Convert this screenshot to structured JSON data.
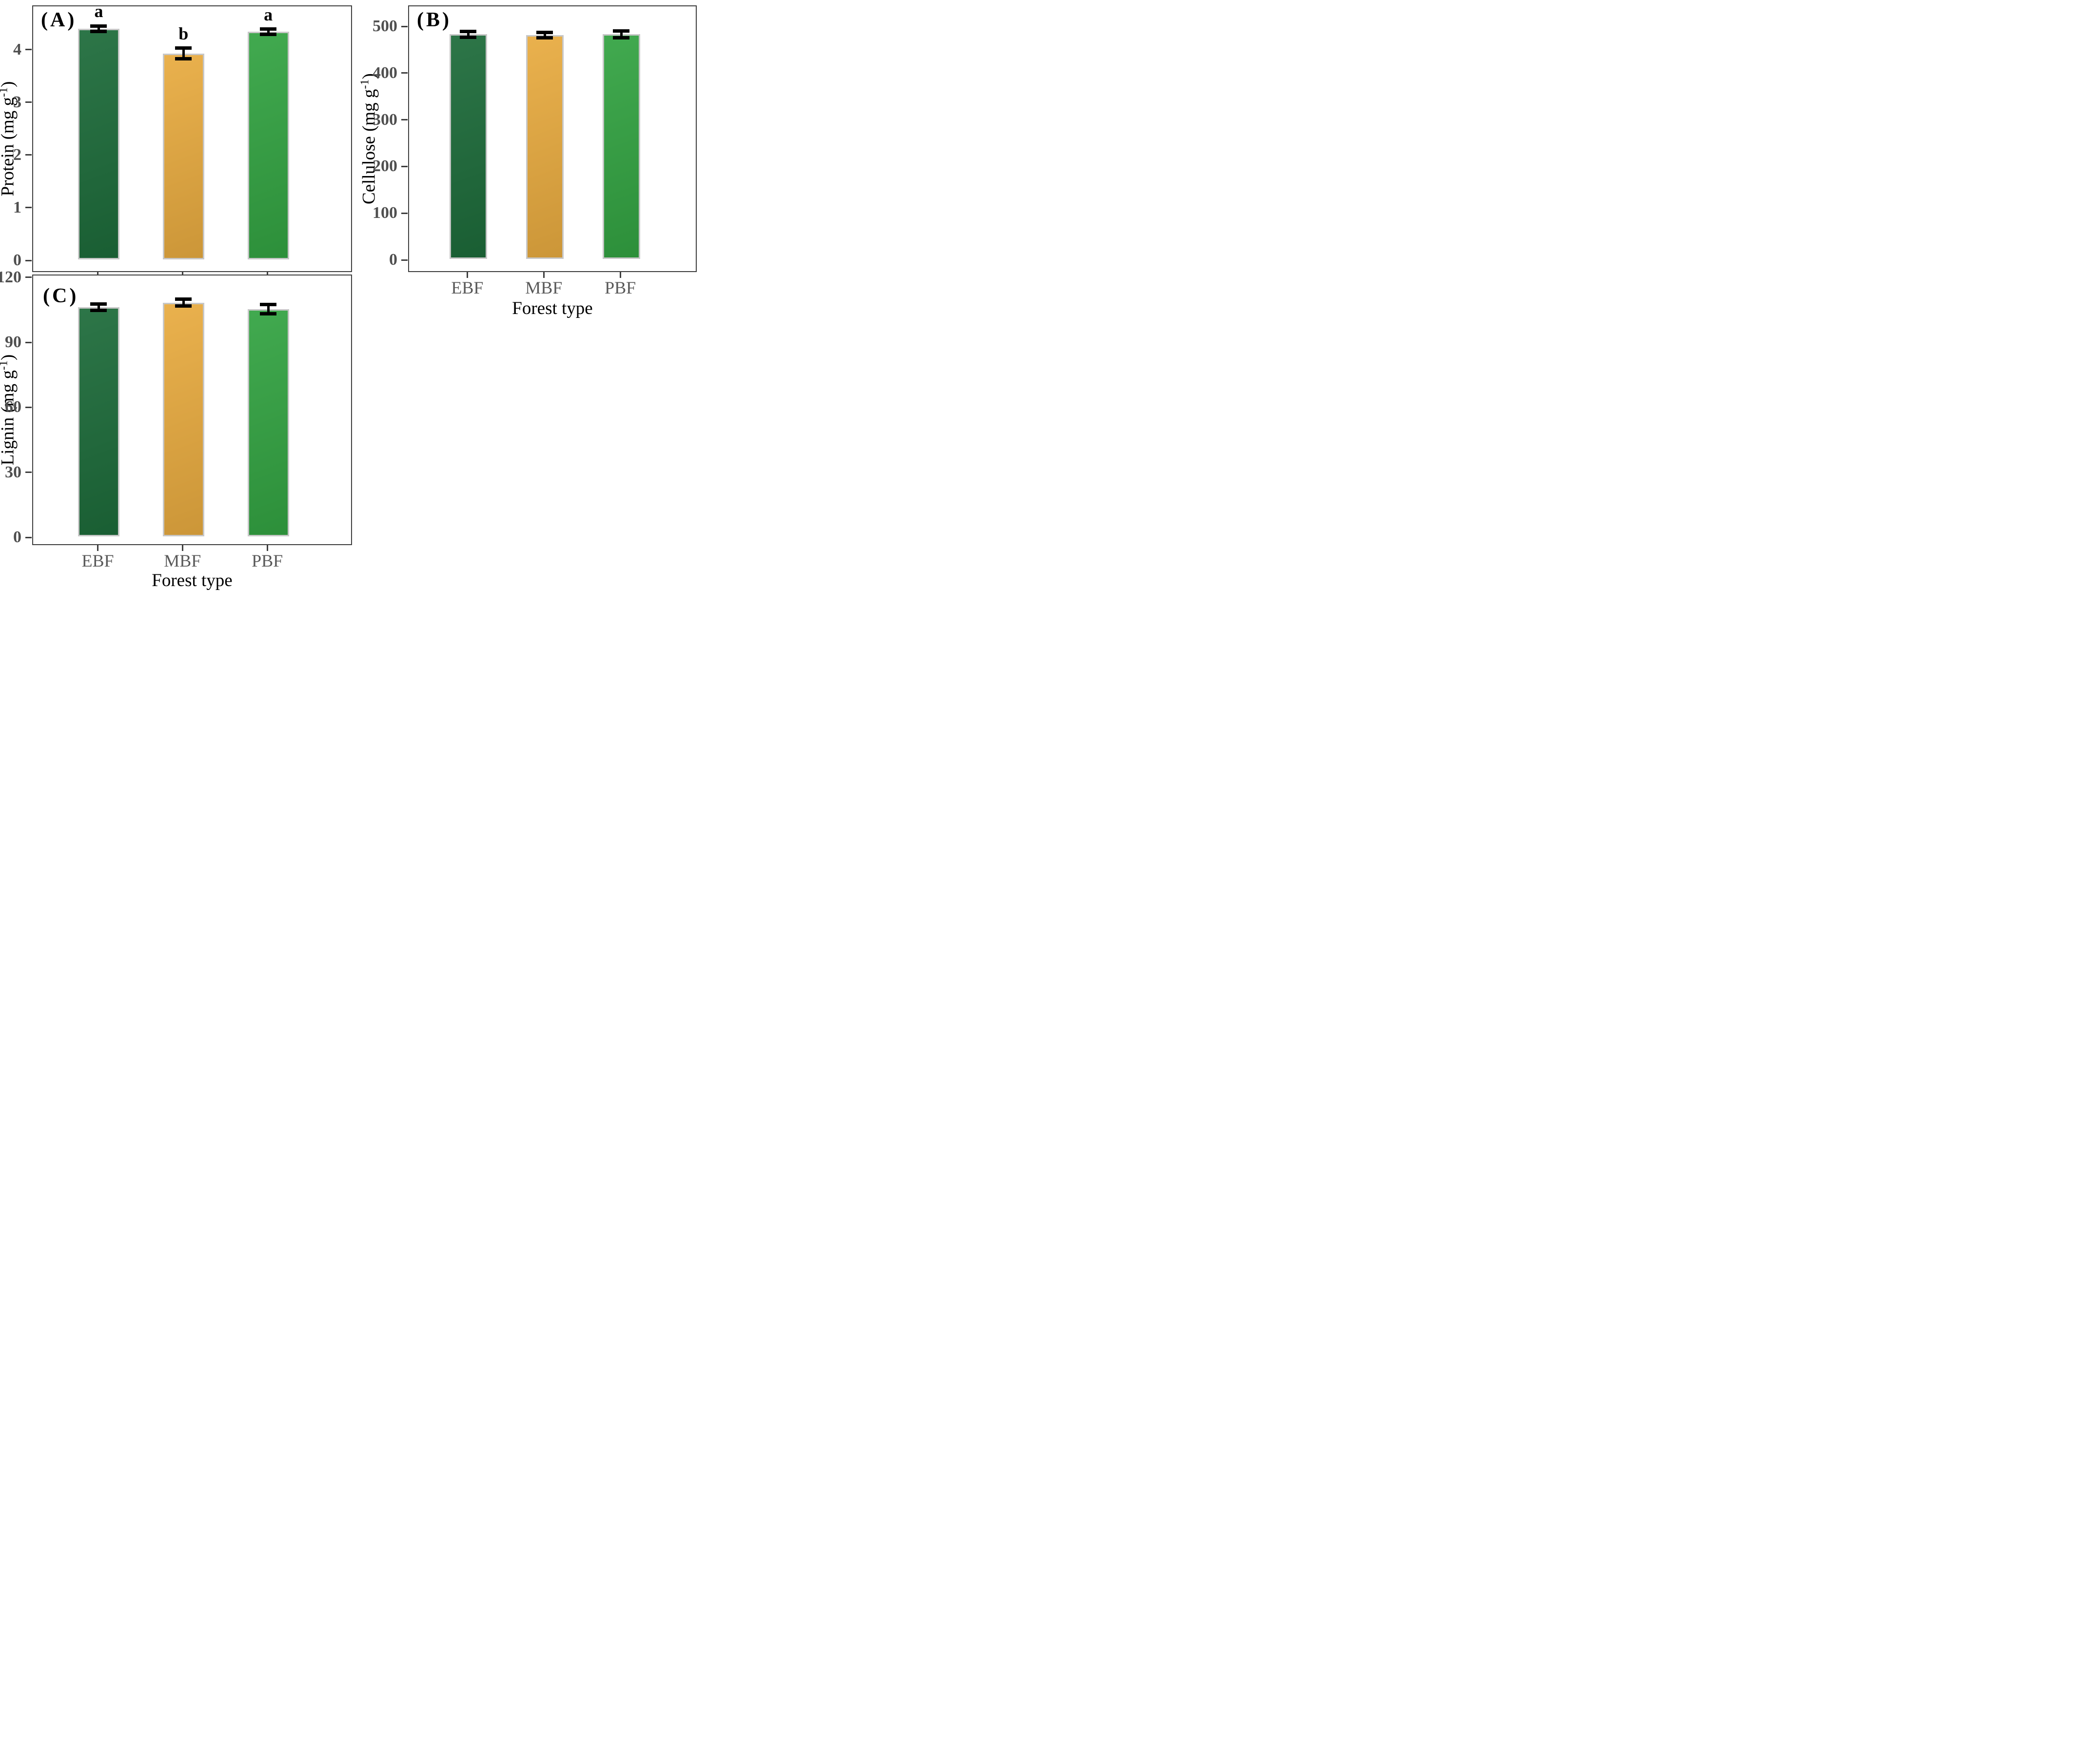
{
  "figure": {
    "description_visible_text_only": true,
    "forest_types": [
      "EBF",
      "MBF",
      "PBF"
    ],
    "x_axis_title": "Forest type"
  },
  "chart_data": [
    {
      "id": "A",
      "panel_label": "(A)",
      "type": "bar",
      "categories": [
        "EBF",
        "MBF",
        "PBF"
      ],
      "values": [
        4.38,
        3.91,
        4.32
      ],
      "errors": [
        0.05,
        0.1,
        0.05
      ],
      "sig_letters": [
        "a",
        "b",
        "a"
      ],
      "title": "",
      "xlabel": "",
      "ylabel": "Protein (mg g-1)",
      "ylabel_parts": {
        "pre": "Protein (mg g",
        "sup": "-1",
        "post": ")"
      },
      "yticks": [
        0,
        1,
        2,
        3,
        4
      ],
      "ylim": [
        0,
        4.84
      ],
      "grid": false,
      "legend": "none",
      "show_x_labels": false,
      "bar_colors": [
        "#1d6b3a",
        "#e8ab40",
        "#33a342"
      ]
    },
    {
      "id": "B",
      "panel_label": "(B)",
      "type": "bar",
      "categories": [
        "EBF",
        "MBF",
        "PBF"
      ],
      "values": [
        481,
        479,
        481
      ],
      "errors": [
        6,
        6,
        7
      ],
      "sig_letters": null,
      "title": "",
      "xlabel": "Forest type",
      "ylabel": "Cellulose (mg g-1)",
      "ylabel_parts": {
        "pre": "Cellulose (mg g",
        "sup": "-1",
        "post": ")"
      },
      "yticks": [
        0,
        100,
        200,
        300,
        400,
        500
      ],
      "ylim": [
        0,
        545
      ],
      "grid": false,
      "legend": "none",
      "show_x_labels": true,
      "bar_colors": [
        "#1d6b3a",
        "#e8ab40",
        "#33a342"
      ]
    },
    {
      "id": "C",
      "panel_label": "(C)",
      "type": "bar",
      "categories": [
        "EBF",
        "MBF",
        "PBF"
      ],
      "values": [
        105.8,
        107.9,
        104.9
      ],
      "errors": [
        1.5,
        1.5,
        2.2
      ],
      "sig_letters": null,
      "title": "",
      "xlabel": "Forest type",
      "ylabel": "Lignin (mg g-1)",
      "ylabel_parts": {
        "pre": "Lignin (mg g",
        "sup": "-1",
        "post": ")"
      },
      "yticks": [
        0,
        30,
        60,
        90,
        120
      ],
      "ylim": [
        0,
        121.3
      ],
      "grid": false,
      "legend": "none",
      "show_x_labels": true,
      "bar_colors": [
        "#1d6b3a",
        "#e8ab40",
        "#33a342"
      ]
    }
  ],
  "style": {
    "bar_border_color": "#c7c7c7",
    "axis_color": "#3f3f3f",
    "tick_label_color": "#4f4f4f",
    "category_label_color": "#595959",
    "axis_title_color": "#000000",
    "error_bar_color": "#000000",
    "background": "#ffffff",
    "bar_color_ebf": "#1d6b3a",
    "bar_color_mbf": "#e8ab40",
    "bar_color_pbf": "#33a342"
  }
}
